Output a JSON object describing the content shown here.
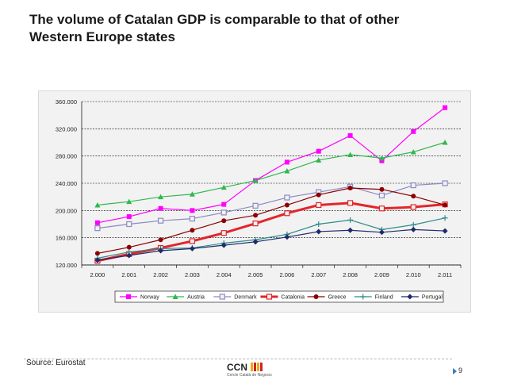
{
  "slide": {
    "title_line1": "The volume of Catalan GDP is comparable to that of other",
    "title_line2": "Western Europe states",
    "source": "Source: Eurostat",
    "page_number": "9",
    "logo_text": "CCN",
    "logo_subtitle": "Cercle Català de Negocis"
  },
  "chart_data": {
    "type": "line",
    "title": "",
    "xlabel": "",
    "ylabel": "",
    "ylim": [
      120000,
      360000
    ],
    "y_ticks": [
      120000,
      160000,
      200000,
      240000,
      280000,
      320000,
      360000
    ],
    "y_tick_labels": [
      "120.000",
      "160.000",
      "200.000",
      "240.000",
      "280.000",
      "320.000",
      "360.000"
    ],
    "categories": [
      "2.000",
      "2.001",
      "2.002",
      "2.003",
      "2.004",
      "2.005",
      "2.006",
      "2.007",
      "2.008",
      "2.009",
      "2.010",
      "2.011"
    ],
    "grid": "horizontal dashed",
    "legend_position": "bottom",
    "series": [
      {
        "name": "Norway",
        "color": "#ff00ff",
        "marker": "square",
        "width": 1.2,
        "values": [
          182000,
          191000,
          203000,
          200000,
          209000,
          244000,
          271000,
          287000,
          310000,
          273000,
          316000,
          351000
        ]
      },
      {
        "name": "Austria",
        "color": "#2eb84e",
        "marker": "triangle",
        "width": 1.2,
        "values": [
          208000,
          213000,
          220000,
          224000,
          234000,
          244000,
          258000,
          274000,
          282000,
          277000,
          286000,
          300000
        ]
      },
      {
        "name": "Denmark",
        "color": "#8a8ac4",
        "marker": "square-open",
        "width": 1.2,
        "values": [
          174000,
          180000,
          185000,
          188000,
          197000,
          207000,
          219000,
          227000,
          235000,
          222000,
          237000,
          240000
        ]
      },
      {
        "name": "Catalonia",
        "color": "#e2262a",
        "marker": "square-open",
        "width": 3,
        "values": [
          126000,
          136000,
          145000,
          155000,
          167000,
          181000,
          196000,
          208000,
          211000,
          203000,
          205000,
          209000
        ]
      },
      {
        "name": "Greece",
        "color": "#8b0000",
        "marker": "circle",
        "width": 1.2,
        "values": [
          137000,
          146000,
          157000,
          171000,
          185000,
          193000,
          208000,
          223000,
          233000,
          231000,
          221000,
          208000
        ]
      },
      {
        "name": "Finland",
        "color": "#2e8b8b",
        "marker": "plus",
        "width": 1.2,
        "values": [
          130000,
          139000,
          144000,
          145000,
          152000,
          157000,
          165000,
          180000,
          186000,
          172000,
          179000,
          189000
        ]
      },
      {
        "name": "Portugal",
        "color": "#1f2a6b",
        "marker": "diamond",
        "width": 1.2,
        "values": [
          127000,
          134000,
          141000,
          144000,
          149000,
          154000,
          161000,
          169000,
          171000,
          168000,
          172000,
          170000
        ]
      }
    ]
  }
}
